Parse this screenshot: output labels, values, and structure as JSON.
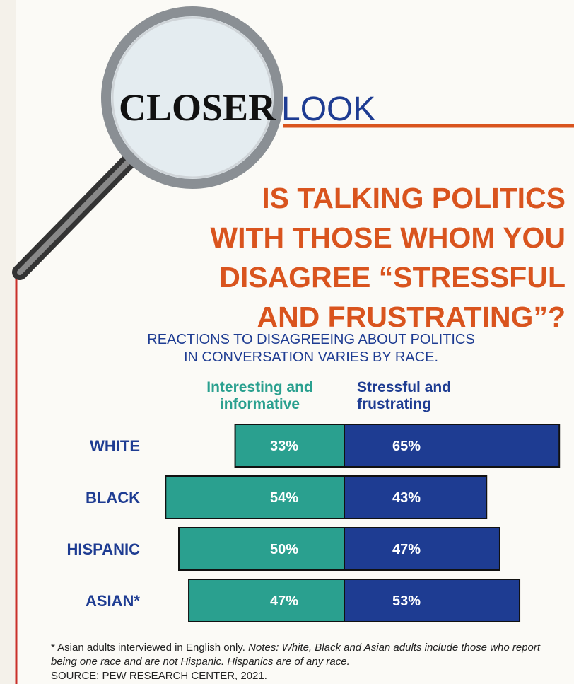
{
  "header": {
    "closer": "CLOSER",
    "look": "LOOK"
  },
  "chart_data": {
    "type": "diverging_bar",
    "title": [
      "IS TALKING POLITICS",
      "WITH THOSE WHOM YOU",
      "DISAGREE “STRESSFUL",
      "AND FRUSTRATING”?"
    ],
    "subtitle": [
      "REACTIONS TO DISAGREEING ABOUT POLITICS",
      "IN CONVERSATION VARIES BY RACE."
    ],
    "categories": [
      "WHITE",
      "BLACK",
      "HISPANIC",
      "ASIAN*"
    ],
    "series": [
      {
        "name": "Interesting and informative",
        "color": "#2aa08f",
        "values": [
          33,
          54,
          50,
          47
        ],
        "value_labels": [
          "33%",
          "54%",
          "50%",
          "47%"
        ]
      },
      {
        "name": "Stressful and frustrating",
        "color": "#1e3c92",
        "values": [
          65,
          43,
          47,
          53
        ],
        "value_labels": [
          "65%",
          "43%",
          "47%",
          "53%"
        ]
      }
    ],
    "footnote": "* Asian adults interviewed in English only.",
    "notes": "Notes: White, Black and Asian adults include those who report being one race and are not Hispanic. Hispanics are of any race.",
    "source": "SOURCE: PEW RESEARCH CENTER, 2021."
  }
}
